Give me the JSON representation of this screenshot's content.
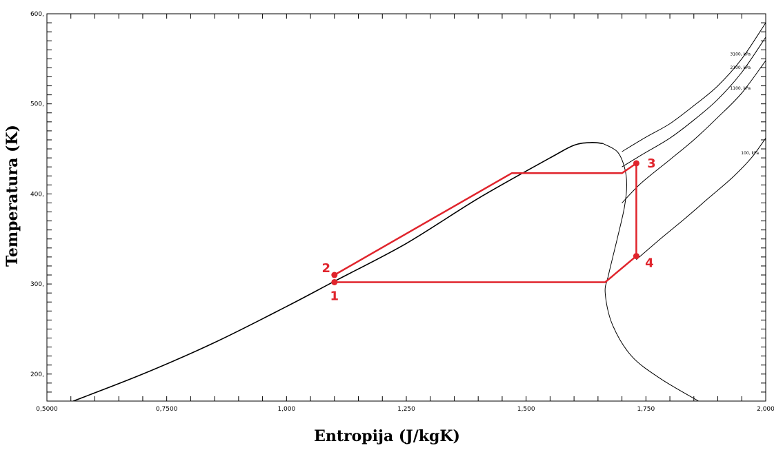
{
  "chart_data": {
    "type": "line",
    "title": "",
    "xlabel": "Entropija (J/kgK)",
    "ylabel": "Temperatura (K)",
    "xlim": [
      0.5,
      2.0
    ],
    "ylim": [
      170,
      600
    ],
    "x_ticks": [
      {
        "value": 0.5,
        "label": "0,5000"
      },
      {
        "value": 0.75,
        "label": "0,7500"
      },
      {
        "value": 1.0,
        "label": "1,000"
      },
      {
        "value": 1.25,
        "label": "1,250"
      },
      {
        "value": 1.5,
        "label": "1,500"
      },
      {
        "value": 1.75,
        "label": "1,750"
      },
      {
        "value": 2.0,
        "label": "2,000"
      }
    ],
    "y_ticks": [
      {
        "value": 200,
        "label": "200,"
      },
      {
        "value": 300,
        "label": "300,"
      },
      {
        "value": 400,
        "label": "400,"
      },
      {
        "value": 500,
        "label": "500,"
      },
      {
        "value": 600,
        "label": "600,"
      }
    ],
    "grid": false,
    "saturation_dome": {
      "liquid_line": [
        [
          0.555,
          170
        ],
        [
          0.7,
          200
        ],
        [
          0.85,
          235
        ],
        [
          1.0,
          275
        ],
        [
          1.1,
          303
        ],
        [
          1.25,
          345
        ],
        [
          1.4,
          395
        ],
        [
          1.55,
          440
        ],
        [
          1.6,
          454
        ],
        [
          1.635,
          457
        ],
        [
          1.66,
          456
        ]
      ],
      "vapor_line": [
        [
          1.66,
          456
        ],
        [
          1.69,
          447
        ],
        [
          1.705,
          430
        ],
        [
          1.71,
          410
        ],
        [
          1.705,
          385
        ],
        [
          1.69,
          350
        ],
        [
          1.672,
          310
        ],
        [
          1.665,
          290
        ],
        [
          1.68,
          255
        ],
        [
          1.72,
          220
        ],
        [
          1.78,
          195
        ],
        [
          1.86,
          170
        ]
      ]
    },
    "isobars": [
      {
        "label": "3100, kPa",
        "points": [
          [
            1.7,
            447
          ],
          [
            1.75,
            463
          ],
          [
            1.8,
            478
          ],
          [
            1.85,
            498
          ],
          [
            1.9,
            520
          ],
          [
            1.95,
            550
          ],
          [
            2.0,
            590
          ]
        ]
      },
      {
        "label": "2100, kPa",
        "points": [
          [
            1.7,
            430
          ],
          [
            1.74,
            443
          ],
          [
            1.8,
            462
          ],
          [
            1.85,
            482
          ],
          [
            1.9,
            505
          ],
          [
            1.95,
            535
          ],
          [
            2.0,
            574
          ]
        ]
      },
      {
        "label": "1100, kPa",
        "points": [
          [
            1.7,
            390
          ],
          [
            1.74,
            412
          ],
          [
            1.8,
            438
          ],
          [
            1.85,
            460
          ],
          [
            1.9,
            485
          ],
          [
            1.95,
            512
          ],
          [
            2.0,
            548
          ]
        ]
      },
      {
        "label": "100, kPa",
        "points": [
          [
            1.73,
            327
          ],
          [
            1.78,
            350
          ],
          [
            1.83,
            372
          ],
          [
            1.88,
            395
          ],
          [
            1.93,
            418
          ],
          [
            1.97,
            440
          ],
          [
            2.0,
            462
          ]
        ]
      }
    ],
    "cycle": {
      "color": "#e0242c",
      "path": [
        [
          1.1,
          310
        ],
        [
          1.47,
          423
        ],
        [
          1.7,
          423
        ],
        [
          1.73,
          434
        ],
        [
          1.73,
          331
        ],
        [
          1.665,
          302
        ],
        [
          1.1,
          302
        ]
      ],
      "points": [
        {
          "label": "1",
          "x": 1.1,
          "y": 302
        },
        {
          "label": "2",
          "x": 1.1,
          "y": 310
        },
        {
          "label": "3",
          "x": 1.73,
          "y": 434
        },
        {
          "label": "4",
          "x": 1.73,
          "y": 331
        }
      ]
    }
  }
}
